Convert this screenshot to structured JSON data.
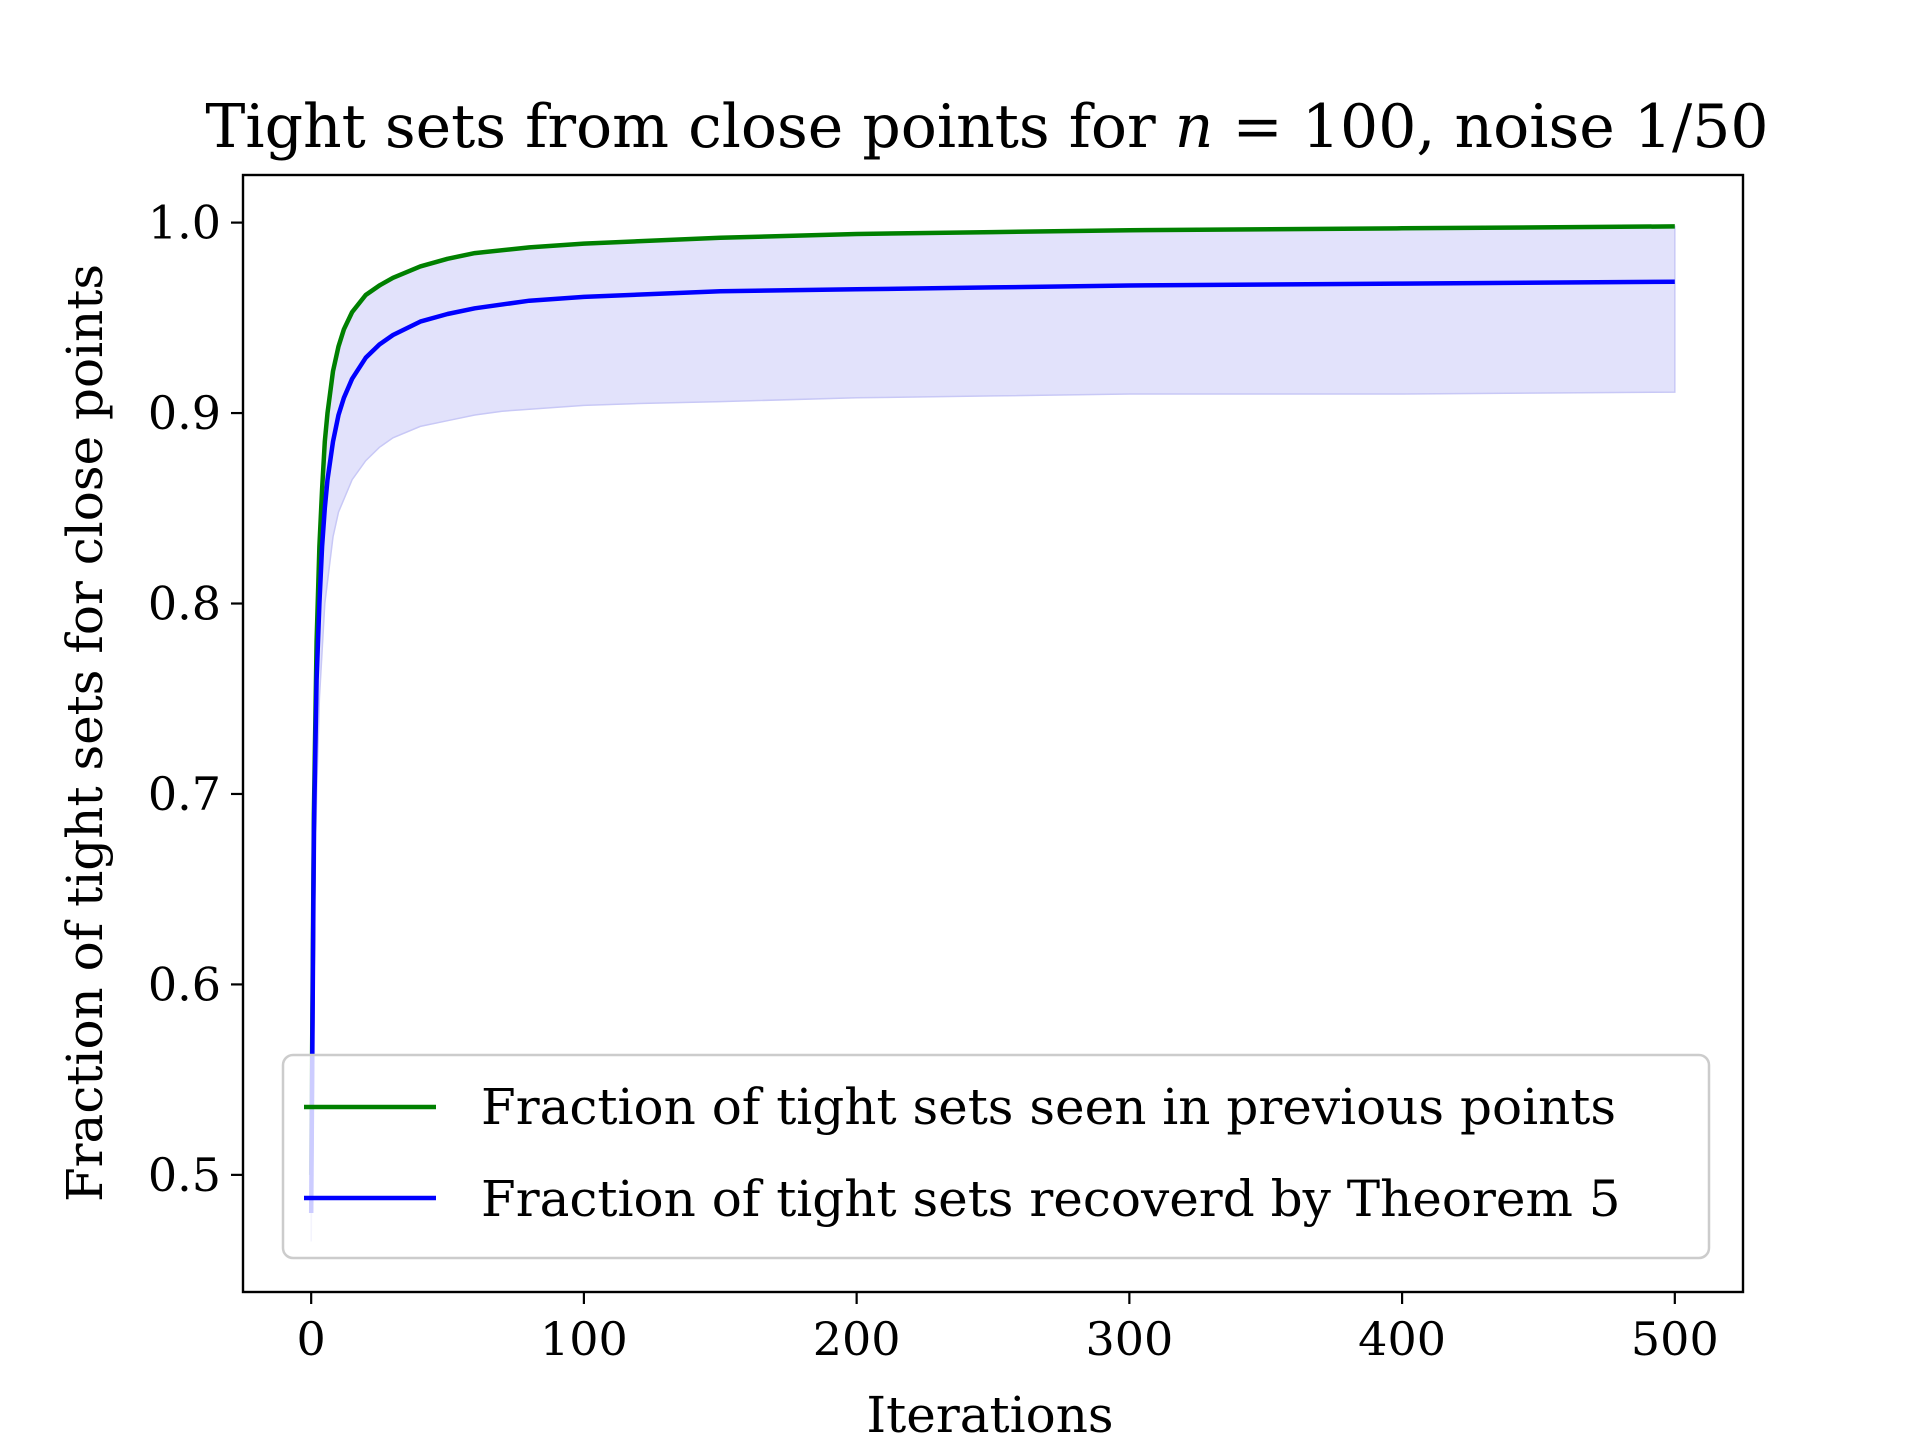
{
  "chart_data": {
    "type": "line",
    "title": "Tight sets from close points for n = 100, noise 1/50",
    "title_parts": {
      "prefix": "Tight sets from close points for ",
      "variable": "n",
      "suffix": " = 100, noise 1/50"
    },
    "xlabel": "Iterations",
    "ylabel": "Fraction of tight sets for close points",
    "xlim": [
      -25,
      525
    ],
    "ylim": [
      0.4385,
      1.025
    ],
    "x_ticks": [
      0,
      100,
      200,
      300,
      400,
      500
    ],
    "x_tick_labels": [
      "0",
      "100",
      "200",
      "300",
      "400",
      "500"
    ],
    "y_ticks": [
      0.5,
      0.6,
      0.7,
      0.8,
      0.9,
      1.0
    ],
    "y_tick_labels": [
      "0.5",
      "0.6",
      "0.7",
      "0.8",
      "0.9",
      "1.0"
    ],
    "grid": false,
    "legend_position": "lower-right",
    "series": [
      {
        "name": "Fraction of tight sets seen in previous points",
        "color": "#008000",
        "x": [
          0,
          1,
          2,
          3,
          4,
          5,
          6,
          8,
          10,
          12,
          15,
          20,
          25,
          30,
          40,
          50,
          60,
          80,
          100,
          150,
          200,
          250,
          300,
          400,
          500
        ],
        "y": [
          0.5,
          0.69,
          0.78,
          0.83,
          0.86,
          0.885,
          0.9,
          0.922,
          0.935,
          0.944,
          0.953,
          0.962,
          0.967,
          0.971,
          0.977,
          0.981,
          0.984,
          0.987,
          0.989,
          0.992,
          0.994,
          0.995,
          0.996,
          0.997,
          0.998
        ]
      },
      {
        "name": "Fraction of tight sets recoverd by Theorem 5",
        "color": "#0000ff",
        "x": [
          0,
          1,
          2,
          3,
          4,
          5,
          6,
          8,
          10,
          12,
          15,
          20,
          25,
          30,
          40,
          50,
          60,
          80,
          100,
          150,
          200,
          250,
          300,
          400,
          500
        ],
        "y": [
          0.48,
          0.68,
          0.76,
          0.8,
          0.83,
          0.85,
          0.865,
          0.885,
          0.899,
          0.908,
          0.918,
          0.929,
          0.936,
          0.941,
          0.948,
          0.952,
          0.955,
          0.959,
          0.961,
          0.964,
          0.965,
          0.966,
          0.967,
          0.968,
          0.969
        ]
      }
    ],
    "band": {
      "color": "#e2e2fb",
      "edge_color": "#c8c8f6",
      "x": [
        0,
        1,
        2,
        3,
        5,
        8,
        10,
        15,
        20,
        25,
        30,
        40,
        50,
        60,
        70,
        80,
        100,
        120,
        150,
        200,
        250,
        300,
        400,
        500
      ],
      "lower": [
        0.465,
        0.62,
        0.7,
        0.75,
        0.8,
        0.835,
        0.848,
        0.865,
        0.875,
        0.882,
        0.887,
        0.893,
        0.896,
        0.899,
        0.901,
        0.902,
        0.904,
        0.905,
        0.906,
        0.908,
        0.909,
        0.91,
        0.91,
        0.911
      ],
      "upper": [
        0.5,
        0.69,
        0.78,
        0.83,
        0.885,
        0.922,
        0.935,
        0.953,
        0.962,
        0.967,
        0.971,
        0.977,
        0.981,
        0.984,
        0.986,
        0.987,
        0.989,
        0.99,
        0.992,
        0.994,
        0.995,
        0.996,
        0.997,
        0.998
      ]
    }
  }
}
